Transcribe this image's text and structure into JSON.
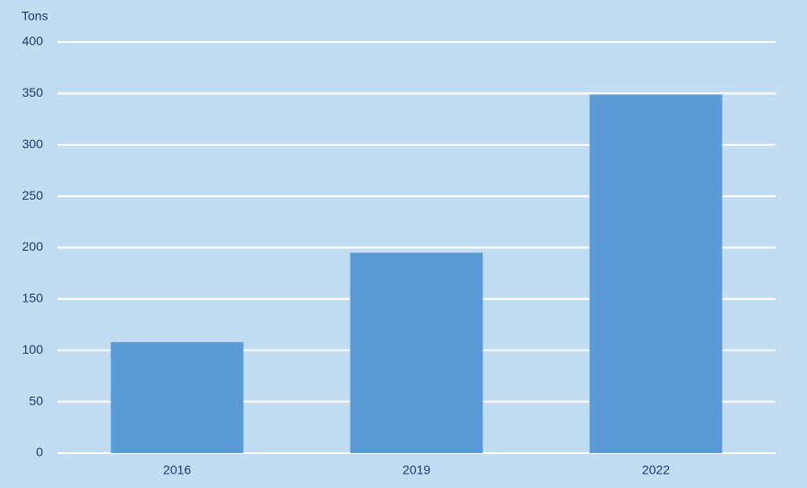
{
  "chart_data": {
    "type": "bar",
    "y_label": "Tons",
    "categories": [
      "2016",
      "2019",
      "2022"
    ],
    "values": [
      108,
      195,
      349
    ],
    "color": "#5b9bd5",
    "ylim": [
      0,
      400
    ],
    "yticks": [
      0,
      50,
      100,
      150,
      200,
      250,
      300,
      350,
      400
    ],
    "grid": true
  }
}
